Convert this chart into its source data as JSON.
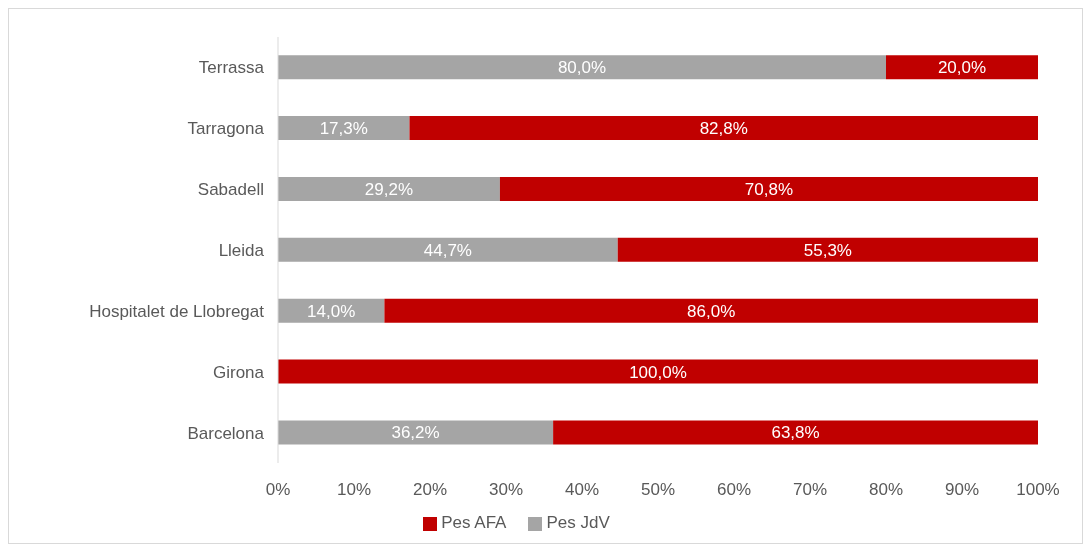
{
  "chart_data": {
    "type": "bar",
    "orientation": "horizontal",
    "stacked": true,
    "categories": [
      "Terrassa",
      "Tarragona",
      "Sabadell",
      "Lleida",
      "Hospitalet de Llobregat",
      "Girona",
      "Barcelona"
    ],
    "series": [
      {
        "name": "Pes JdV",
        "color": "#a5a5a5",
        "values": [
          80.0,
          17.3,
          29.2,
          44.7,
          14.0,
          0,
          36.2
        ],
        "value_labels": [
          "80,0%",
          "17,3%",
          "29,2%",
          "44,7%",
          "14,0%",
          null,
          "36,2%"
        ]
      },
      {
        "name": "Pes AFA",
        "color": "#c00000",
        "values": [
          20.0,
          82.8,
          70.8,
          55.3,
          86.0,
          100.0,
          63.8
        ],
        "value_labels": [
          "20,0%",
          "82,8%",
          "70,8%",
          "55,3%",
          "86,0%",
          "100,0%",
          "63,8%"
        ]
      }
    ],
    "xlim": [
      0,
      100
    ],
    "xticks": [
      {
        "value": 0,
        "label": "0%"
      },
      {
        "value": 10,
        "label": "10%"
      },
      {
        "value": 20,
        "label": "20%"
      },
      {
        "value": 30,
        "label": "30%"
      },
      {
        "value": 40,
        "label": "40%"
      },
      {
        "value": 50,
        "label": "50%"
      },
      {
        "value": 60,
        "label": "60%"
      },
      {
        "value": 70,
        "label": "70%"
      },
      {
        "value": 80,
        "label": "80%"
      },
      {
        "value": 90,
        "label": "90%"
      },
      {
        "value": 100,
        "label": "100%"
      }
    ],
    "legend": "bottom"
  }
}
